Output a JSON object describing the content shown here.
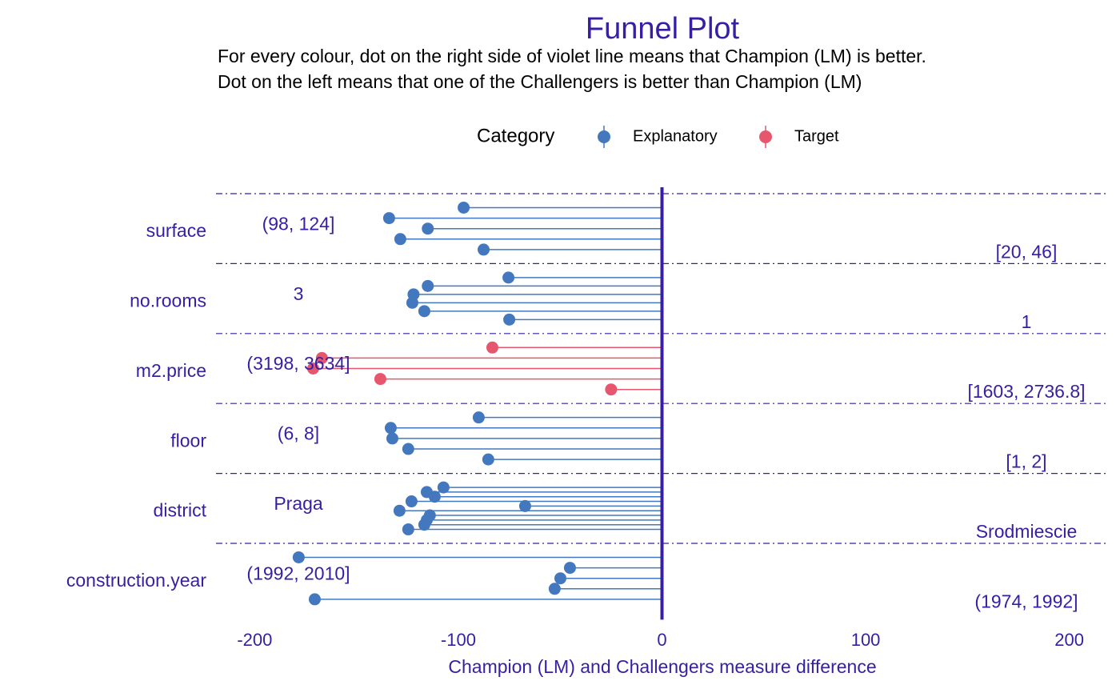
{
  "chart_data": {
    "type": "funnel",
    "title": "Funnel Plot",
    "subtitle": [
      "For every colour, dot on the right side of violet line means that Champion (LM) is better.",
      "Dot on the left means that one of the Challengers is better than Champion (LM)"
    ],
    "legend_title": "Category",
    "series": [
      {
        "name": "Explanatory",
        "color": "#4378bf"
      },
      {
        "name": "Target",
        "color": "#e6566c"
      }
    ],
    "groups": [
      {
        "name": "surface",
        "category": "Explanatory",
        "left_label": "(98, 124]",
        "right_label": "[20, 46]",
        "values": [
          -97.4,
          -134,
          -115,
          -128.5,
          -87.6
        ]
      },
      {
        "name": "no.rooms",
        "category": "Explanatory",
        "left_label": "3",
        "right_label": "1",
        "values": [
          -75.4,
          -115,
          -122,
          -122.6,
          -116.7,
          -75
        ]
      },
      {
        "name": "m2.price",
        "category": "Target",
        "left_label": "(3198, 3634]",
        "right_label": "[1603, 2736.8]",
        "values": [
          -83.3,
          -167,
          -171.3,
          -138.3,
          -25
        ]
      },
      {
        "name": "floor",
        "category": "Explanatory",
        "left_label": "(6, 8]",
        "right_label": "[1, 2]",
        "values": [
          -90,
          -133.2,
          -132.4,
          -124.6,
          -85.3
        ]
      },
      {
        "name": "district",
        "category": "Explanatory",
        "left_label": "Praga",
        "right_label": "Srodmiescie",
        "values": [
          -107.3,
          -115.5,
          -111.6,
          -123,
          -67.2,
          -128.9,
          -114,
          -115.5,
          -116.7,
          -124.6
        ]
      },
      {
        "name": "construction.year",
        "category": "Explanatory",
        "left_label": "(1992, 2010]",
        "right_label": "(1974, 1992]",
        "values": [
          -178.4,
          -45.2,
          -49.9,
          -52.7,
          -170.5
        ]
      }
    ],
    "x_label": "Champion (LM) and Challengers measure difference",
    "xlim": [
      -219,
      219
    ],
    "xticks": [
      -200,
      -100,
      0,
      100,
      200
    ]
  }
}
